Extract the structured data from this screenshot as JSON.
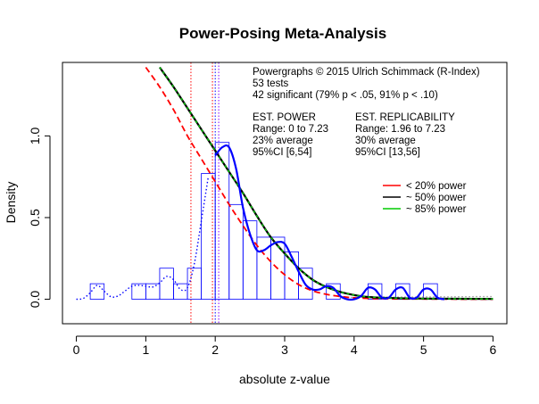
{
  "chart_data": {
    "type": "histogram",
    "title": "Power-Posing Meta-Analysis",
    "xlabel": "absolute z-value",
    "ylabel": "Density",
    "xlim": [
      -0.2,
      6.2
    ],
    "ylim": [
      -0.15,
      1.45
    ],
    "xticks": [
      "0",
      "1",
      "2",
      "3",
      "4",
      "5",
      "6"
    ],
    "yticks": [
      "0.0",
      "0.5",
      "1.0"
    ],
    "grid": false,
    "annotations": {
      "line1": "Powergraphs © 2015 Ulrich Schimmack (R-Index)",
      "line2": "53 tests",
      "line3": "42 significant (79% p < .05, 91% p < .10)",
      "power_header": "EST. POWER",
      "power_range": "Range: 0 to 7.23",
      "power_avg": "23% average",
      "power_ci": "95%CI [6,54]",
      "repl_header": "EST. REPLICABILITY",
      "repl_range": "Range: 1.96 to 7.23",
      "repl_avg": "30% average",
      "repl_ci": "95%CI [13,56]"
    },
    "legend": {
      "placement": "right",
      "entries": [
        {
          "label": "< 20% power",
          "color": "#ff0000"
        },
        {
          "label": "~ 50% power",
          "color": "#000000"
        },
        {
          "label": "~ 85% power",
          "color": "#00cc00"
        }
      ]
    },
    "histogram": {
      "bin_width": 0.2,
      "bins": [
        {
          "x0": 0.2,
          "density": 0.095
        },
        {
          "x0": 0.8,
          "density": 0.095
        },
        {
          "x0": 1.0,
          "density": 0.095
        },
        {
          "x0": 1.2,
          "density": 0.19
        },
        {
          "x0": 1.4,
          "density": 0.095
        },
        {
          "x0": 1.6,
          "density": 0.19
        },
        {
          "x0": 1.8,
          "density": 0.77
        },
        {
          "x0": 2.0,
          "density": 0.96
        },
        {
          "x0": 2.2,
          "density": 0.58
        },
        {
          "x0": 2.4,
          "density": 0.48
        },
        {
          "x0": 2.6,
          "density": 0.38
        },
        {
          "x0": 2.8,
          "density": 0.38
        },
        {
          "x0": 3.0,
          "density": 0.29
        },
        {
          "x0": 3.2,
          "density": 0.19
        },
        {
          "x0": 3.6,
          "density": 0.095
        },
        {
          "x0": 4.2,
          "density": 0.095
        },
        {
          "x0": 4.6,
          "density": 0.095
        },
        {
          "x0": 5.0,
          "density": 0.095
        }
      ]
    },
    "vertical_lines": [
      {
        "x": 1.65,
        "color": "#ff0000",
        "style": "dotted"
      },
      {
        "x": 1.96,
        "color": "#ff0000",
        "style": "dotted"
      },
      {
        "x": 2.0,
        "color": "#0000ff",
        "style": "dotted"
      },
      {
        "x": 2.05,
        "color": "#8800ff",
        "style": "dotted"
      }
    ],
    "series": [
      {
        "color": "#0000ff",
        "style": "dotted",
        "x": [
          0.0,
          0.1,
          0.2,
          0.3,
          0.4,
          0.5,
          0.6,
          0.7,
          0.8,
          0.9,
          1.0,
          1.1,
          1.2,
          1.3,
          1.4,
          1.5,
          1.6,
          1.7,
          1.8,
          1.9
        ],
        "y": [
          0.0,
          0.005,
          0.04,
          0.085,
          0.05,
          0.015,
          0.02,
          0.05,
          0.08,
          0.085,
          0.08,
          0.075,
          0.1,
          0.14,
          0.12,
          0.06,
          0.07,
          0.22,
          0.48,
          0.75
        ]
      },
      {
        "color": "#0000ff",
        "style": "solid",
        "x": [
          2.0,
          2.1,
          2.2,
          2.3,
          2.4,
          2.5,
          2.6,
          2.7,
          2.8,
          2.9,
          3.0,
          3.1,
          3.2,
          3.3,
          3.4,
          3.5,
          3.6,
          3.7,
          3.8,
          3.9,
          4.0,
          4.1,
          4.2,
          4.3,
          4.4,
          4.5,
          4.6,
          4.7,
          4.8,
          4.9,
          5.0,
          5.1,
          5.2,
          5.3
        ],
        "y": [
          0.88,
          0.93,
          0.93,
          0.8,
          0.56,
          0.4,
          0.3,
          0.3,
          0.33,
          0.35,
          0.34,
          0.26,
          0.17,
          0.09,
          0.06,
          0.06,
          0.08,
          0.07,
          0.02,
          0.0,
          0.0,
          0.02,
          0.07,
          0.06,
          0.01,
          0.01,
          0.06,
          0.07,
          0.01,
          0.01,
          0.06,
          0.06,
          0.01,
          0.0
        ]
      },
      {
        "color": "#000000",
        "style": "solid",
        "x": [
          1.2,
          1.4,
          1.6,
          1.8,
          2.0,
          2.2,
          2.4,
          2.6,
          2.8,
          3.0,
          3.2,
          3.4,
          3.6,
          3.8,
          4.0,
          4.2,
          4.5,
          5.0,
          6.0
        ],
        "y": [
          1.42,
          1.3,
          1.17,
          1.04,
          0.91,
          0.78,
          0.65,
          0.51,
          0.38,
          0.28,
          0.19,
          0.12,
          0.075,
          0.045,
          0.026,
          0.014,
          0.008,
          0.004,
          0.002
        ]
      },
      {
        "color": "#00cc00",
        "style": "dashed",
        "x": [
          1.2,
          1.4,
          1.6,
          1.8,
          2.0,
          2.2,
          2.4,
          2.6,
          2.8,
          3.0,
          3.2,
          3.4,
          3.6,
          3.8,
          4.0,
          4.2,
          4.5,
          5.0,
          6.0
        ],
        "y": [
          1.42,
          1.3,
          1.17,
          1.04,
          0.91,
          0.78,
          0.65,
          0.51,
          0.38,
          0.28,
          0.19,
          0.12,
          0.075,
          0.045,
          0.026,
          0.014,
          0.008,
          0.004,
          0.002
        ]
      },
      {
        "color": "#ff0000",
        "style": "dashed",
        "x": [
          1.0,
          1.2,
          1.4,
          1.6,
          1.8,
          2.0,
          2.2,
          2.4,
          2.6,
          2.8,
          3.0,
          3.2,
          3.4,
          3.6,
          3.8,
          4.0,
          4.3,
          4.7,
          5.2,
          6.0
        ],
        "y": [
          1.42,
          1.3,
          1.16,
          1.0,
          0.86,
          0.72,
          0.58,
          0.45,
          0.33,
          0.23,
          0.15,
          0.09,
          0.052,
          0.03,
          0.017,
          0.009,
          0.004,
          0.002,
          0.001,
          0.0
        ]
      },
      {
        "color": "#999999",
        "style": "dotted",
        "x": [
          3.8,
          4.2,
          4.6,
          5.0,
          5.4,
          5.8,
          6.0
        ],
        "y": [
          0.01,
          0.012,
          0.013,
          0.014,
          0.015,
          0.016,
          0.016
        ]
      }
    ]
  }
}
